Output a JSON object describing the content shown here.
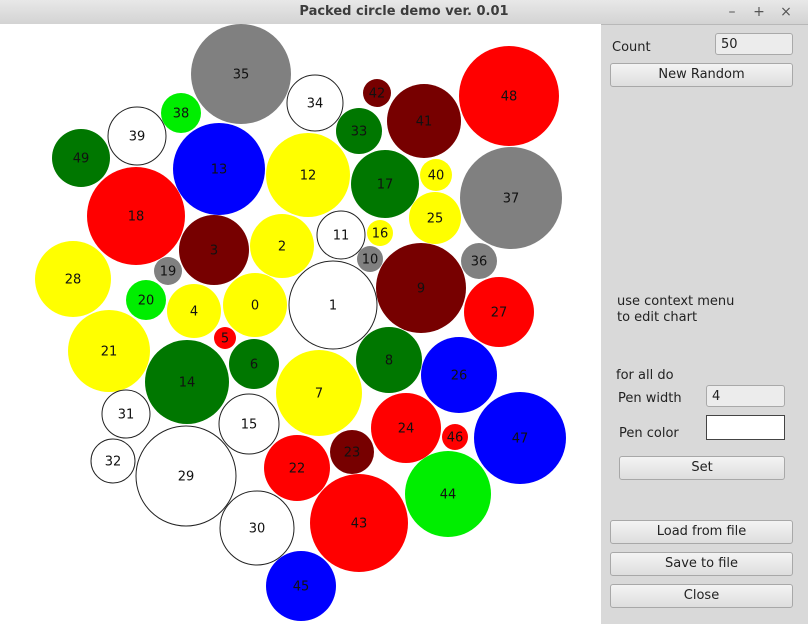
{
  "window": {
    "title": "Packed circle demo ver. 0.01",
    "controls": [
      "–",
      "+",
      "×"
    ]
  },
  "panel": {
    "count_label": "Count",
    "count_value": "50",
    "new_random": "New Random",
    "hint_line1": "use context menu",
    "hint_line2": "to edit chart",
    "for_all": "for all do",
    "pen_width_label": "Pen width",
    "pen_width_value": "4",
    "pen_color_label": "Pen color",
    "pen_color_value": "#ffffff",
    "set_button": "Set",
    "load_button": "Load from file",
    "save_button": "Save to file",
    "close_button": "Close"
  },
  "colors": {
    "gray": "#808080",
    "white": "#ffffff",
    "green": "#007700",
    "lime": "#00ee00",
    "blue": "#0000ff",
    "yellow": "#ffff00",
    "red": "#ff0000",
    "maroon": "#770000"
  },
  "circles": [
    {
      "n": "35",
      "c": "gray"
    },
    {
      "n": "34",
      "c": "white"
    },
    {
      "n": "42",
      "c": "maroon"
    },
    {
      "n": "48",
      "c": "red"
    },
    {
      "n": "38",
      "c": "lime"
    },
    {
      "n": "39",
      "c": "white"
    },
    {
      "n": "33",
      "c": "green"
    },
    {
      "n": "41",
      "c": "maroon"
    },
    {
      "n": "49",
      "c": "green"
    },
    {
      "n": "13",
      "c": "blue"
    },
    {
      "n": "12",
      "c": "yellow"
    },
    {
      "n": "17",
      "c": "green"
    },
    {
      "n": "40",
      "c": "yellow"
    },
    {
      "n": "37",
      "c": "gray"
    },
    {
      "n": "18",
      "c": "red"
    },
    {
      "n": "25",
      "c": "yellow"
    },
    {
      "n": "3",
      "c": "maroon"
    },
    {
      "n": "2",
      "c": "yellow"
    },
    {
      "n": "11",
      "c": "white"
    },
    {
      "n": "16",
      "c": "yellow"
    },
    {
      "n": "10",
      "c": "gray"
    },
    {
      "n": "36",
      "c": "gray"
    },
    {
      "n": "28",
      "c": "yellow"
    },
    {
      "n": "19",
      "c": "gray"
    },
    {
      "n": "9",
      "c": "maroon"
    },
    {
      "n": "20",
      "c": "lime"
    },
    {
      "n": "4",
      "c": "yellow"
    },
    {
      "n": "0",
      "c": "yellow"
    },
    {
      "n": "1",
      "c": "white"
    },
    {
      "n": "27",
      "c": "red"
    },
    {
      "n": "5",
      "c": "red"
    },
    {
      "n": "21",
      "c": "yellow"
    },
    {
      "n": "6",
      "c": "green"
    },
    {
      "n": "8",
      "c": "green"
    },
    {
      "n": "14",
      "c": "green"
    },
    {
      "n": "26",
      "c": "blue"
    },
    {
      "n": "7",
      "c": "yellow"
    },
    {
      "n": "31",
      "c": "white"
    },
    {
      "n": "15",
      "c": "white"
    },
    {
      "n": "24",
      "c": "red"
    },
    {
      "n": "46",
      "c": "red"
    },
    {
      "n": "47",
      "c": "blue"
    },
    {
      "n": "23",
      "c": "maroon"
    },
    {
      "n": "32",
      "c": "white"
    },
    {
      "n": "22",
      "c": "red"
    },
    {
      "n": "29",
      "c": "white"
    },
    {
      "n": "44",
      "c": "lime"
    },
    {
      "n": "30",
      "c": "white"
    },
    {
      "n": "43",
      "c": "red"
    },
    {
      "n": "45",
      "c": "blue"
    }
  ]
}
